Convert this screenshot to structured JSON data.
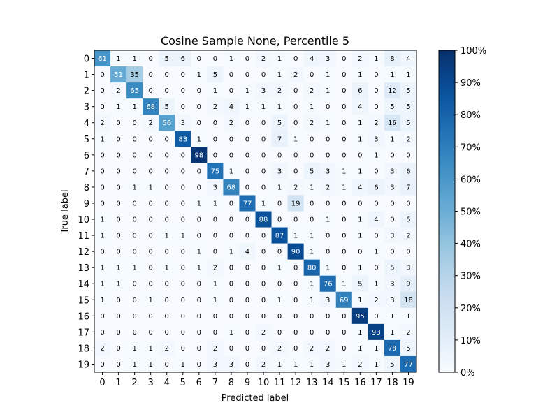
{
  "chart_data": {
    "type": "heatmap",
    "title": "Cosine Sample None, Percentile 5",
    "xlabel": "Predicted label",
    "ylabel": "True label",
    "x_ticks": [
      "0",
      "1",
      "2",
      "3",
      "4",
      "5",
      "6",
      "7",
      "8",
      "9",
      "10",
      "11",
      "12",
      "13",
      "14",
      "15",
      "16",
      "17",
      "18",
      "19"
    ],
    "y_ticks": [
      "0",
      "1",
      "2",
      "3",
      "4",
      "5",
      "6",
      "7",
      "8",
      "9",
      "10",
      "11",
      "12",
      "13",
      "14",
      "15",
      "16",
      "17",
      "18",
      "19"
    ],
    "matrix": [
      [
        61,
        1,
        1,
        0,
        5,
        6,
        0,
        0,
        1,
        0,
        2,
        1,
        0,
        4,
        3,
        0,
        2,
        1,
        8,
        4
      ],
      [
        0,
        51,
        35,
        0,
        0,
        0,
        1,
        5,
        0,
        0,
        0,
        1,
        2,
        0,
        1,
        0,
        1,
        0,
        1,
        1
      ],
      [
        0,
        2,
        65,
        0,
        0,
        0,
        0,
        1,
        0,
        1,
        3,
        2,
        0,
        2,
        1,
        0,
        6,
        0,
        12,
        5
      ],
      [
        0,
        1,
        1,
        68,
        5,
        0,
        0,
        2,
        4,
        1,
        1,
        1,
        0,
        1,
        0,
        0,
        4,
        0,
        5,
        5
      ],
      [
        2,
        0,
        0,
        2,
        56,
        3,
        0,
        0,
        2,
        0,
        0,
        5,
        0,
        2,
        1,
        0,
        1,
        2,
        16,
        5
      ],
      [
        1,
        0,
        0,
        0,
        0,
        83,
        1,
        0,
        0,
        0,
        0,
        7,
        1,
        0,
        0,
        0,
        1,
        3,
        1,
        2
      ],
      [
        0,
        0,
        0,
        0,
        0,
        0,
        98,
        0,
        0,
        0,
        0,
        0,
        0,
        0,
        0,
        0,
        0,
        1,
        0,
        0
      ],
      [
        0,
        0,
        0,
        0,
        0,
        0,
        0,
        75,
        1,
        0,
        0,
        3,
        0,
        5,
        3,
        1,
        1,
        0,
        3,
        6
      ],
      [
        0,
        0,
        1,
        1,
        0,
        0,
        0,
        3,
        68,
        0,
        0,
        1,
        2,
        1,
        2,
        1,
        4,
        6,
        3,
        7
      ],
      [
        0,
        0,
        0,
        0,
        0,
        0,
        1,
        1,
        0,
        77,
        1,
        0,
        19,
        0,
        0,
        0,
        0,
        0,
        0,
        0
      ],
      [
        1,
        0,
        0,
        0,
        0,
        0,
        0,
        0,
        0,
        0,
        88,
        0,
        0,
        0,
        1,
        0,
        1,
        4,
        0,
        5
      ],
      [
        1,
        0,
        0,
        0,
        1,
        1,
        0,
        0,
        0,
        0,
        0,
        87,
        1,
        1,
        0,
        0,
        1,
        0,
        3,
        2
      ],
      [
        0,
        0,
        0,
        0,
        0,
        0,
        1,
        0,
        1,
        4,
        0,
        0,
        90,
        1,
        0,
        0,
        0,
        1,
        0,
        0
      ],
      [
        1,
        1,
        1,
        0,
        1,
        0,
        1,
        2,
        0,
        0,
        0,
        1,
        0,
        80,
        1,
        0,
        1,
        0,
        5,
        3
      ],
      [
        1,
        1,
        0,
        0,
        0,
        0,
        0,
        1,
        0,
        0,
        0,
        0,
        0,
        1,
        76,
        1,
        5,
        1,
        3,
        9
      ],
      [
        1,
        0,
        0,
        1,
        0,
        0,
        0,
        1,
        0,
        0,
        0,
        1,
        0,
        1,
        3,
        69,
        1,
        2,
        3,
        18
      ],
      [
        0,
        0,
        0,
        0,
        0,
        0,
        0,
        0,
        0,
        0,
        0,
        0,
        0,
        0,
        0,
        0,
        95,
        0,
        1,
        1
      ],
      [
        0,
        0,
        0,
        0,
        0,
        0,
        0,
        0,
        1,
        0,
        2,
        0,
        0,
        0,
        0,
        0,
        1,
        93,
        1,
        2
      ],
      [
        2,
        0,
        1,
        1,
        2,
        0,
        0,
        2,
        0,
        0,
        0,
        2,
        0,
        2,
        2,
        0,
        1,
        1,
        78,
        5
      ],
      [
        0,
        0,
        1,
        1,
        0,
        1,
        0,
        3,
        3,
        0,
        2,
        1,
        1,
        1,
        3,
        1,
        2,
        1,
        5,
        77
      ]
    ],
    "vmin": 0,
    "vmax": 100,
    "colormap": "Blues",
    "colorbar_ticks": [
      "0%",
      "10%",
      "20%",
      "30%",
      "40%",
      "50%",
      "60%",
      "70%",
      "80%",
      "90%",
      "100%"
    ],
    "colorbar_values": [
      0,
      10,
      20,
      30,
      40,
      50,
      60,
      70,
      80,
      90,
      100
    ]
  }
}
